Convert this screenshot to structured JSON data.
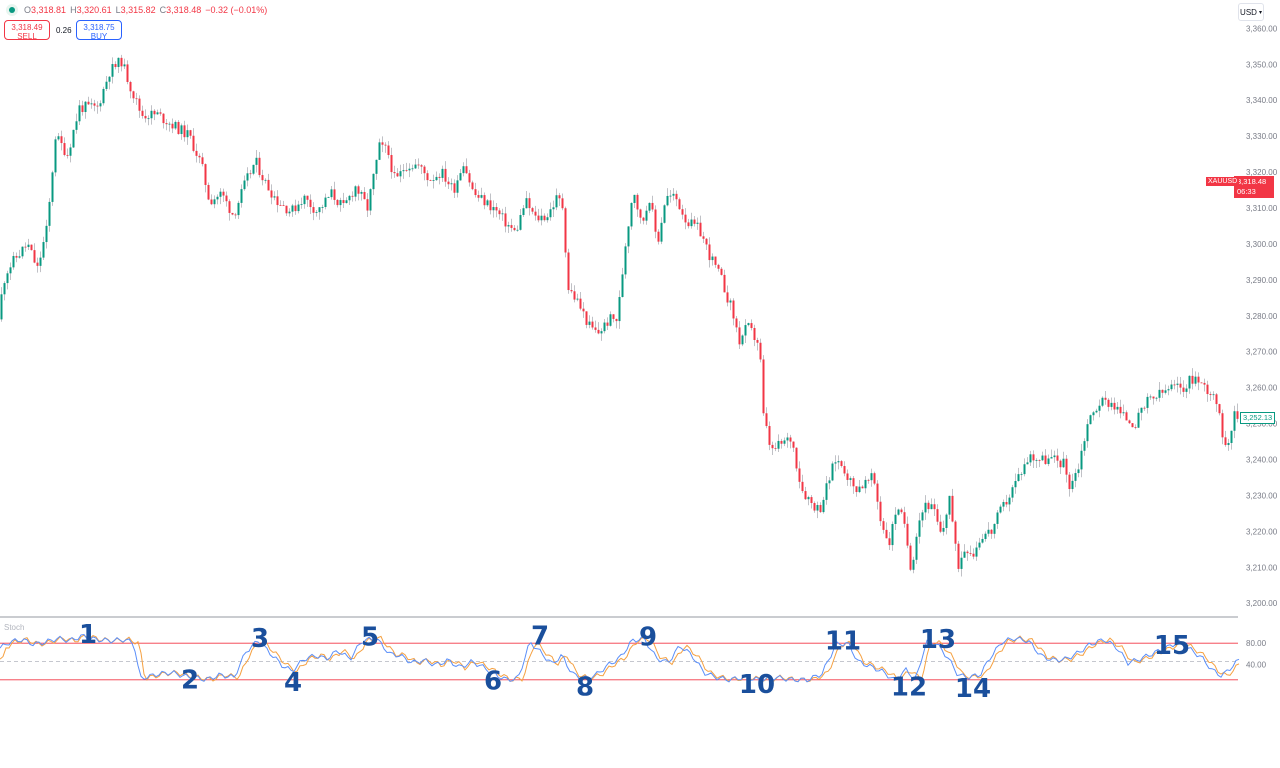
{
  "header": {
    "ohlc": [
      {
        "k": "O",
        "v": "3,318.81"
      },
      {
        "k": "H",
        "v": "3,320.61"
      },
      {
        "k": "L",
        "v": "3,315.82"
      },
      {
        "k": "C",
        "v": "3,318.48"
      }
    ],
    "change": "−0.32 (−0.01%)"
  },
  "trade": {
    "sell_price": "3,318.49",
    "sell_label": "SELL",
    "spread": "0.26",
    "buy_price": "3,318.75",
    "buy_label": "BUY"
  },
  "currency": "USD",
  "price_tag": {
    "symbol": "XAUUSD",
    "price": "3,318.48",
    "countdown": "06:33"
  },
  "last_tag": "3,252.13",
  "indicator_name": "Stoch",
  "colors": {
    "up": "#089981",
    "down": "#f23645",
    "k_line": "#5b8ff9",
    "d_line": "#f5a142",
    "bands": "#f23645",
    "annotation": "#1a4f9c"
  },
  "chart_data": {
    "type": "candlestick",
    "price_axis": {
      "ticks": [
        "3,360.00",
        "3,350.00",
        "3,340.00",
        "3,330.00",
        "3,320.00",
        "3,310.00",
        "3,300.00",
        "3,290.00",
        "3,280.00",
        "3,270.00",
        "3,260.00",
        "3,250.00",
        "3,240.00",
        "3,230.00",
        "3,220.00",
        "3,210.00",
        "3,200.00"
      ],
      "range": [
        3197,
        3364
      ]
    },
    "price_path": [
      [
        0,
        3279
      ],
      [
        8,
        3292
      ],
      [
        18,
        3296
      ],
      [
        30,
        3300
      ],
      [
        40,
        3293
      ],
      [
        50,
        3305
      ],
      [
        58,
        3330
      ],
      [
        70,
        3325
      ],
      [
        82,
        3338
      ],
      [
        100,
        3338
      ],
      [
        112,
        3348
      ],
      [
        124,
        3351
      ],
      [
        134,
        3343
      ],
      [
        144,
        3336
      ],
      [
        160,
        3336
      ],
      [
        176,
        3333
      ],
      [
        192,
        3330
      ],
      [
        204,
        3322
      ],
      [
        212,
        3312
      ],
      [
        224,
        3314
      ],
      [
        236,
        3308
      ],
      [
        248,
        3317
      ],
      [
        258,
        3323
      ],
      [
        268,
        3317
      ],
      [
        280,
        3312
      ],
      [
        294,
        3309
      ],
      [
        306,
        3313
      ],
      [
        320,
        3309
      ],
      [
        334,
        3314
      ],
      [
        346,
        3310
      ],
      [
        358,
        3316
      ],
      [
        370,
        3310
      ],
      [
        382,
        3327
      ],
      [
        390,
        3326
      ],
      [
        398,
        3317
      ],
      [
        408,
        3322
      ],
      [
        420,
        3322
      ],
      [
        432,
        3318
      ],
      [
        444,
        3320
      ],
      [
        456,
        3315
      ],
      [
        466,
        3323
      ],
      [
        476,
        3314
      ],
      [
        486,
        3312
      ],
      [
        496,
        3310
      ],
      [
        508,
        3306
      ],
      [
        518,
        3303
      ],
      [
        528,
        3312
      ],
      [
        538,
        3307
      ],
      [
        550,
        3308
      ],
      [
        560,
        3313
      ],
      [
        566,
        3310
      ],
      [
        570,
        3288
      ],
      [
        580,
        3284
      ],
      [
        592,
        3277
      ],
      [
        600,
        3275
      ],
      [
        612,
        3279
      ],
      [
        620,
        3279
      ],
      [
        628,
        3300
      ],
      [
        636,
        3316
      ],
      [
        644,
        3305
      ],
      [
        652,
        3313
      ],
      [
        660,
        3300
      ],
      [
        668,
        3313
      ],
      [
        678,
        3313
      ],
      [
        690,
        3306
      ],
      [
        702,
        3304
      ],
      [
        712,
        3297
      ],
      [
        724,
        3290
      ],
      [
        734,
        3282
      ],
      [
        742,
        3273
      ],
      [
        750,
        3277
      ],
      [
        762,
        3272
      ],
      [
        766,
        3252
      ],
      [
        774,
        3242
      ],
      [
        782,
        3244
      ],
      [
        794,
        3246
      ],
      [
        804,
        3232
      ],
      [
        814,
        3228
      ],
      [
        822,
        3226
      ],
      [
        830,
        3233
      ],
      [
        838,
        3240
      ],
      [
        846,
        3238
      ],
      [
        856,
        3232
      ],
      [
        866,
        3233
      ],
      [
        876,
        3235
      ],
      [
        884,
        3222
      ],
      [
        892,
        3217
      ],
      [
        900,
        3228
      ],
      [
        908,
        3220
      ],
      [
        914,
        3209
      ],
      [
        920,
        3222
      ],
      [
        928,
        3228
      ],
      [
        936,
        3226
      ],
      [
        944,
        3218
      ],
      [
        952,
        3230
      ],
      [
        960,
        3210
      ],
      [
        968,
        3216
      ],
      [
        976,
        3214
      ],
      [
        984,
        3219
      ],
      [
        994,
        3220
      ],
      [
        1002,
        3225
      ],
      [
        1012,
        3230
      ],
      [
        1022,
        3236
      ],
      [
        1032,
        3241
      ],
      [
        1044,
        3240
      ],
      [
        1056,
        3240
      ],
      [
        1066,
        3239
      ],
      [
        1072,
        3233
      ],
      [
        1080,
        3237
      ],
      [
        1090,
        3250
      ],
      [
        1102,
        3256
      ],
      [
        1114,
        3256
      ],
      [
        1126,
        3252
      ],
      [
        1138,
        3250
      ],
      [
        1150,
        3256
      ],
      [
        1162,
        3258
      ],
      [
        1174,
        3260
      ],
      [
        1186,
        3260
      ],
      [
        1196,
        3263
      ],
      [
        1208,
        3260
      ],
      [
        1218,
        3258
      ],
      [
        1224,
        3248
      ],
      [
        1230,
        3244
      ],
      [
        1236,
        3252
      ]
    ],
    "stoch_axis": {
      "ticks": [
        "80.00",
        "40.00"
      ],
      "range": [
        0,
        100
      ],
      "upper_band": 80,
      "lower_band": 20,
      "mid_line": 50
    },
    "stoch_path": [
      [
        0,
        72
      ],
      [
        10,
        82
      ],
      [
        22,
        86
      ],
      [
        34,
        78
      ],
      [
        46,
        82
      ],
      [
        58,
        88
      ],
      [
        70,
        84
      ],
      [
        82,
        92
      ],
      [
        96,
        86
      ],
      [
        110,
        84
      ],
      [
        124,
        86
      ],
      [
        134,
        80
      ],
      [
        140,
        22
      ],
      [
        150,
        26
      ],
      [
        160,
        30
      ],
      [
        172,
        32
      ],
      [
        184,
        26
      ],
      [
        194,
        24
      ],
      [
        206,
        20
      ],
      [
        220,
        28
      ],
      [
        234,
        24
      ],
      [
        246,
        66
      ],
      [
        258,
        84
      ],
      [
        270,
        64
      ],
      [
        282,
        44
      ],
      [
        292,
        34
      ],
      [
        304,
        54
      ],
      [
        316,
        60
      ],
      [
        326,
        54
      ],
      [
        338,
        68
      ],
      [
        350,
        54
      ],
      [
        362,
        84
      ],
      [
        376,
        88
      ],
      [
        390,
        62
      ],
      [
        400,
        60
      ],
      [
        412,
        48
      ],
      [
        424,
        52
      ],
      [
        436,
        44
      ],
      [
        448,
        52
      ],
      [
        460,
        40
      ],
      [
        472,
        50
      ],
      [
        484,
        40
      ],
      [
        494,
        30
      ],
      [
        506,
        20
      ],
      [
        518,
        22
      ],
      [
        530,
        82
      ],
      [
        540,
        66
      ],
      [
        552,
        46
      ],
      [
        562,
        60
      ],
      [
        572,
        30
      ],
      [
        584,
        22
      ],
      [
        596,
        28
      ],
      [
        608,
        44
      ],
      [
        620,
        56
      ],
      [
        632,
        84
      ],
      [
        644,
        88
      ],
      [
        656,
        56
      ],
      [
        668,
        48
      ],
      [
        680,
        76
      ],
      [
        692,
        60
      ],
      [
        704,
        32
      ],
      [
        716,
        24
      ],
      [
        728,
        20
      ],
      [
        744,
        24
      ],
      [
        760,
        20
      ],
      [
        776,
        24
      ],
      [
        792,
        20
      ],
      [
        808,
        20
      ],
      [
        822,
        30
      ],
      [
        836,
        78
      ],
      [
        848,
        80
      ],
      [
        858,
        50
      ],
      [
        870,
        42
      ],
      [
        882,
        34
      ],
      [
        894,
        20
      ],
      [
        906,
        36
      ],
      [
        916,
        20
      ],
      [
        926,
        82
      ],
      [
        936,
        80
      ],
      [
        948,
        56
      ],
      [
        958,
        28
      ],
      [
        968,
        24
      ],
      [
        980,
        28
      ],
      [
        990,
        56
      ],
      [
        1002,
        82
      ],
      [
        1014,
        88
      ],
      [
        1028,
        84
      ],
      [
        1042,
        58
      ],
      [
        1054,
        52
      ],
      [
        1066,
        54
      ],
      [
        1078,
        64
      ],
      [
        1090,
        78
      ],
      [
        1104,
        86
      ],
      [
        1116,
        74
      ],
      [
        1128,
        48
      ],
      [
        1140,
        54
      ],
      [
        1154,
        64
      ],
      [
        1166,
        72
      ],
      [
        1178,
        82
      ],
      [
        1190,
        70
      ],
      [
        1202,
        56
      ],
      [
        1212,
        36
      ],
      [
        1222,
        26
      ],
      [
        1232,
        42
      ],
      [
        1240,
        54
      ]
    ],
    "annotations": [
      {
        "label": "1",
        "x": 88,
        "v": 98
      },
      {
        "label": "2",
        "x": 190,
        "v": 24
      },
      {
        "label": "3",
        "x": 260,
        "v": 92
      },
      {
        "label": "4",
        "x": 293,
        "v": 20
      },
      {
        "label": "5",
        "x": 370,
        "v": 94
      },
      {
        "label": "6",
        "x": 493,
        "v": 22
      },
      {
        "label": "7",
        "x": 540,
        "v": 96
      },
      {
        "label": "8",
        "x": 585,
        "v": 12
      },
      {
        "label": "9",
        "x": 648,
        "v": 94
      },
      {
        "label": "10",
        "x": 757,
        "v": 16
      },
      {
        "label": "11",
        "x": 843,
        "v": 88
      },
      {
        "label": "12",
        "x": 909,
        "v": 12
      },
      {
        "label": "13",
        "x": 938,
        "v": 90
      },
      {
        "label": "14",
        "x": 973,
        "v": 10
      },
      {
        "label": "15",
        "x": 1172,
        "v": 80
      }
    ]
  }
}
